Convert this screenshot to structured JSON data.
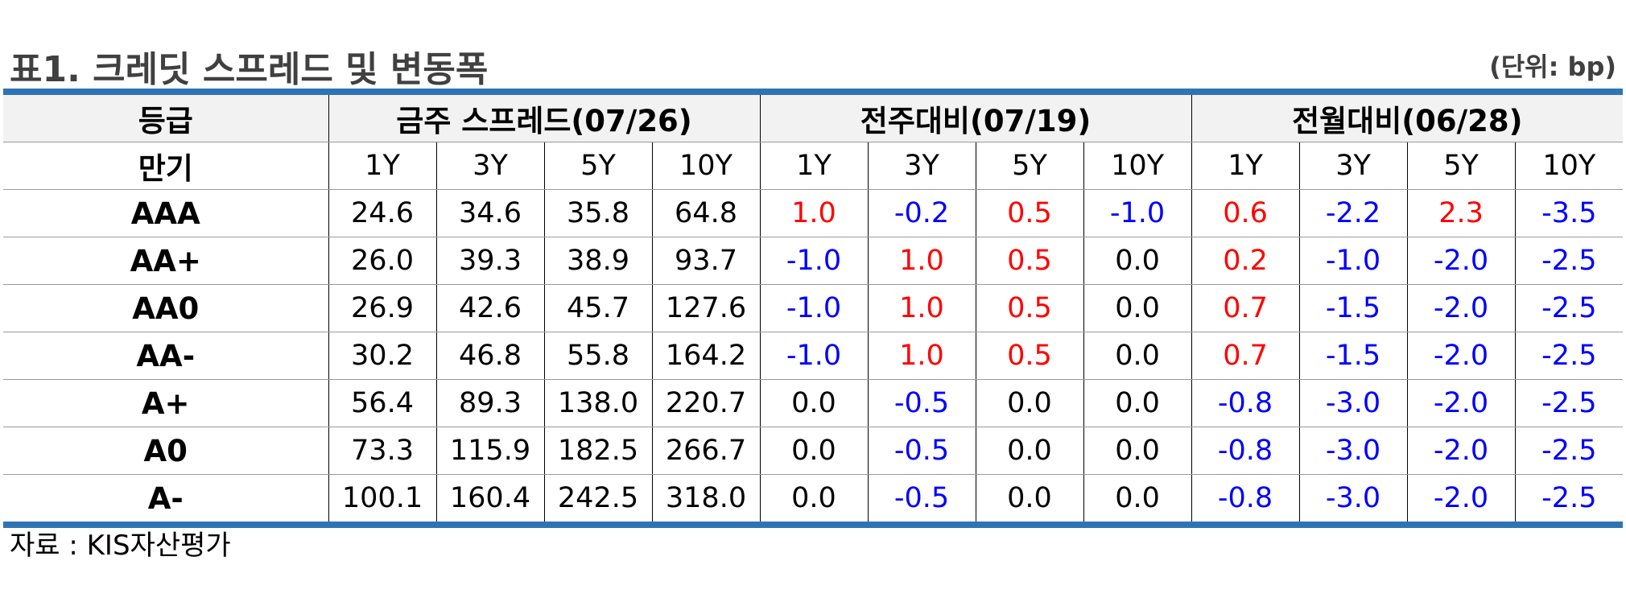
{
  "header": {
    "title": "표1. 크레딧 스프레드 및 변동폭",
    "unit": "(단위: bp)"
  },
  "table": {
    "row_header_1": "등급",
    "row_header_2": "만기",
    "groups": [
      "금주 스프레드(07/26)",
      "전주대비(07/19)",
      "전월대비(06/28)"
    ],
    "tenors": [
      "1Y",
      "3Y",
      "5Y",
      "10Y",
      "1Y",
      "3Y",
      "5Y",
      "10Y",
      "1Y",
      "3Y",
      "5Y",
      "10Y"
    ],
    "rows": [
      {
        "grade": "AAA",
        "cells": [
          {
            "v": "24.6",
            "c": "black"
          },
          {
            "v": "34.6",
            "c": "black"
          },
          {
            "v": "35.8",
            "c": "black"
          },
          {
            "v": "64.8",
            "c": "black"
          },
          {
            "v": "1.0",
            "c": "red"
          },
          {
            "v": "-0.2",
            "c": "blue"
          },
          {
            "v": "0.5",
            "c": "red"
          },
          {
            "v": "-1.0",
            "c": "blue"
          },
          {
            "v": "0.6",
            "c": "red"
          },
          {
            "v": "-2.2",
            "c": "blue"
          },
          {
            "v": "2.3",
            "c": "red"
          },
          {
            "v": "-3.5",
            "c": "blue"
          }
        ]
      },
      {
        "grade": "AA+",
        "cells": [
          {
            "v": "26.0",
            "c": "black"
          },
          {
            "v": "39.3",
            "c": "black"
          },
          {
            "v": "38.9",
            "c": "black"
          },
          {
            "v": "93.7",
            "c": "black"
          },
          {
            "v": "-1.0",
            "c": "blue"
          },
          {
            "v": "1.0",
            "c": "red"
          },
          {
            "v": "0.5",
            "c": "red"
          },
          {
            "v": "0.0",
            "c": "black"
          },
          {
            "v": "0.2",
            "c": "red"
          },
          {
            "v": "-1.0",
            "c": "blue"
          },
          {
            "v": "-2.0",
            "c": "blue"
          },
          {
            "v": "-2.5",
            "c": "blue"
          }
        ]
      },
      {
        "grade": "AA0",
        "cells": [
          {
            "v": "26.9",
            "c": "black"
          },
          {
            "v": "42.6",
            "c": "black"
          },
          {
            "v": "45.7",
            "c": "black"
          },
          {
            "v": "127.6",
            "c": "black"
          },
          {
            "v": "-1.0",
            "c": "blue"
          },
          {
            "v": "1.0",
            "c": "red"
          },
          {
            "v": "0.5",
            "c": "red"
          },
          {
            "v": "0.0",
            "c": "black"
          },
          {
            "v": "0.7",
            "c": "red"
          },
          {
            "v": "-1.5",
            "c": "blue"
          },
          {
            "v": "-2.0",
            "c": "blue"
          },
          {
            "v": "-2.5",
            "c": "blue"
          }
        ]
      },
      {
        "grade": "AA-",
        "cells": [
          {
            "v": "30.2",
            "c": "black"
          },
          {
            "v": "46.8",
            "c": "black"
          },
          {
            "v": "55.8",
            "c": "black"
          },
          {
            "v": "164.2",
            "c": "black"
          },
          {
            "v": "-1.0",
            "c": "blue"
          },
          {
            "v": "1.0",
            "c": "red"
          },
          {
            "v": "0.5",
            "c": "red"
          },
          {
            "v": "0.0",
            "c": "black"
          },
          {
            "v": "0.7",
            "c": "red"
          },
          {
            "v": "-1.5",
            "c": "blue"
          },
          {
            "v": "-2.0",
            "c": "blue"
          },
          {
            "v": "-2.5",
            "c": "blue"
          }
        ]
      },
      {
        "grade": "A+",
        "cells": [
          {
            "v": "56.4",
            "c": "black"
          },
          {
            "v": "89.3",
            "c": "black"
          },
          {
            "v": "138.0",
            "c": "black"
          },
          {
            "v": "220.7",
            "c": "black"
          },
          {
            "v": "0.0",
            "c": "black"
          },
          {
            "v": "-0.5",
            "c": "blue"
          },
          {
            "v": "0.0",
            "c": "black"
          },
          {
            "v": "0.0",
            "c": "black"
          },
          {
            "v": "-0.8",
            "c": "blue"
          },
          {
            "v": "-3.0",
            "c": "blue"
          },
          {
            "v": "-2.0",
            "c": "blue"
          },
          {
            "v": "-2.5",
            "c": "blue"
          }
        ]
      },
      {
        "grade": "A0",
        "cells": [
          {
            "v": "73.3",
            "c": "black"
          },
          {
            "v": "115.9",
            "c": "black"
          },
          {
            "v": "182.5",
            "c": "black"
          },
          {
            "v": "266.7",
            "c": "black"
          },
          {
            "v": "0.0",
            "c": "black"
          },
          {
            "v": "-0.5",
            "c": "blue"
          },
          {
            "v": "0.0",
            "c": "black"
          },
          {
            "v": "0.0",
            "c": "black"
          },
          {
            "v": "-0.8",
            "c": "blue"
          },
          {
            "v": "-3.0",
            "c": "blue"
          },
          {
            "v": "-2.0",
            "c": "blue"
          },
          {
            "v": "-2.5",
            "c": "blue"
          }
        ]
      },
      {
        "grade": "A-",
        "cells": [
          {
            "v": "100.1",
            "c": "black"
          },
          {
            "v": "160.4",
            "c": "black"
          },
          {
            "v": "242.5",
            "c": "black"
          },
          {
            "v": "318.0",
            "c": "black"
          },
          {
            "v": "0.0",
            "c": "black"
          },
          {
            "v": "-0.5",
            "c": "blue"
          },
          {
            "v": "0.0",
            "c": "black"
          },
          {
            "v": "0.0",
            "c": "black"
          },
          {
            "v": "-0.8",
            "c": "blue"
          },
          {
            "v": "-3.0",
            "c": "blue"
          },
          {
            "v": "-2.0",
            "c": "blue"
          },
          {
            "v": "-2.5",
            "c": "blue"
          }
        ]
      }
    ]
  },
  "footer": {
    "source": "자료 : KIS자산평가"
  },
  "colors": {
    "accent_rule": "#2e74b5",
    "positive": "#ff0000",
    "negative": "#0000ff"
  }
}
